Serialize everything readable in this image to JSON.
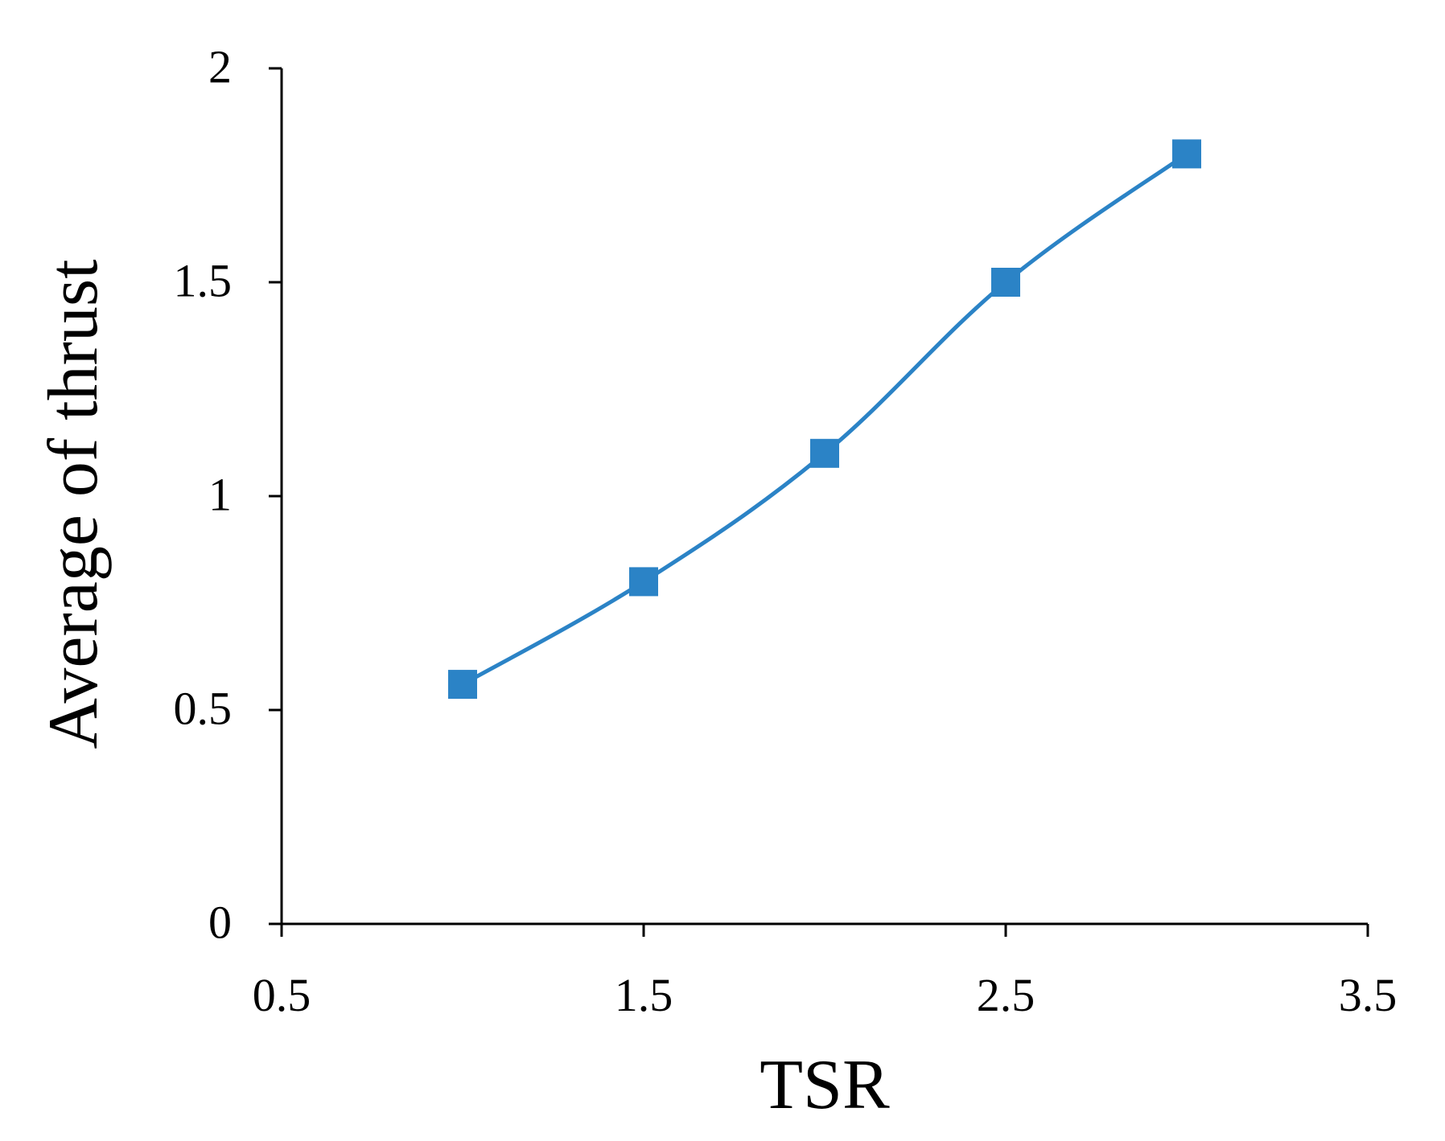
{
  "chart_data": {
    "type": "line",
    "title": "",
    "xlabel": "TSR",
    "ylabel": "Average of thrust",
    "xlim": [
      0.5,
      3.5
    ],
    "ylim": [
      0,
      2
    ],
    "xticks": [
      "0.5",
      "1.5",
      "2.5",
      "3.5"
    ],
    "yticks": [
      "0",
      "0.5",
      "1",
      "1.5",
      "2"
    ],
    "grid": false,
    "legend": "none",
    "series": [
      {
        "color": "#2b83c6",
        "marker": "square",
        "smooth": true,
        "x": [
          1,
          1.5,
          2,
          2.5,
          3
        ],
        "y": [
          0.56,
          0.8,
          1.1,
          1.5,
          1.8
        ]
      }
    ]
  }
}
